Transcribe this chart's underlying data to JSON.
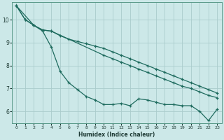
{
  "xlabel": "Humidex (Indice chaleur)",
  "bg_color": "#cce8e8",
  "grid_color": "#aacccc",
  "line_color": "#1e6b5e",
  "xlim": [
    -0.5,
    23.5
  ],
  "ylim": [
    5.5,
    10.75
  ],
  "xticks": [
    0,
    1,
    2,
    3,
    4,
    5,
    6,
    7,
    8,
    9,
    10,
    11,
    12,
    13,
    14,
    15,
    16,
    17,
    18,
    19,
    20,
    21,
    22,
    23
  ],
  "yticks": [
    6,
    7,
    8,
    9,
    10
  ],
  "line1_x": [
    0,
    1,
    2,
    3,
    4,
    5,
    6,
    7,
    8,
    9,
    10,
    11,
    12,
    13,
    14,
    15,
    16,
    17,
    18,
    19,
    20,
    21,
    22,
    23
  ],
  "line1_y": [
    10.6,
    10.0,
    9.75,
    9.5,
    8.8,
    7.75,
    7.25,
    6.95,
    6.65,
    6.5,
    6.3,
    6.3,
    6.35,
    6.25,
    6.55,
    6.5,
    6.4,
    6.3,
    6.3,
    6.25,
    6.25,
    6.0,
    5.6,
    6.1
  ],
  "line2_x": [
    0,
    1,
    2,
    3,
    4,
    10,
    11,
    12,
    13,
    14,
    15,
    16,
    17,
    18,
    19,
    20,
    21,
    22,
    23
  ],
  "line2_y": [
    10.6,
    10.0,
    9.75,
    9.55,
    9.5,
    8.45,
    8.3,
    8.15,
    8.0,
    7.85,
    7.7,
    7.55,
    7.4,
    7.25,
    7.1,
    7.0,
    6.85,
    6.7,
    6.6
  ],
  "line3_x": [
    0,
    2,
    3,
    4,
    5,
    6,
    7,
    8,
    9,
    10,
    11,
    12,
    13,
    14,
    15,
    16,
    17,
    18,
    19,
    20,
    21,
    22,
    23
  ],
  "line3_y": [
    10.6,
    9.75,
    9.55,
    9.5,
    9.3,
    9.15,
    9.05,
    8.95,
    8.85,
    8.75,
    8.6,
    8.45,
    8.3,
    8.15,
    8.0,
    7.85,
    7.7,
    7.55,
    7.4,
    7.25,
    7.1,
    6.95,
    6.8
  ]
}
